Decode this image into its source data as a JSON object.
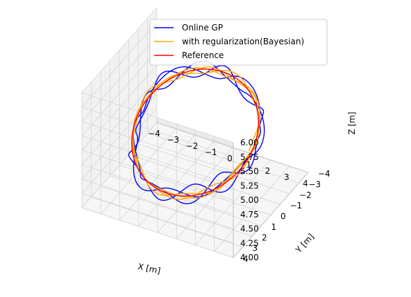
{
  "chart_data": {
    "type": "line",
    "projection": "3d",
    "grid": true,
    "legend_position": "top-right",
    "xlabel": "X [m]",
    "ylabel": "Y [m]",
    "zlabel": "Z [m]",
    "xlim": [
      -4,
      4
    ],
    "ylim": [
      -4,
      4
    ],
    "zlim": [
      4.0,
      6.0
    ],
    "x_ticks": [
      "−4",
      "−3",
      "−2",
      "−1",
      "0",
      "1",
      "2",
      "3",
      "4"
    ],
    "y_ticks": [
      "−4",
      "−3",
      "−2",
      "−1",
      "0",
      "1",
      "2",
      "3",
      "4"
    ],
    "z_ticks": [
      "4.00",
      "4.25",
      "4.50",
      "4.75",
      "5.00",
      "5.25",
      "5.50",
      "5.75",
      "6.00"
    ],
    "series": [
      {
        "name": "Online GP",
        "color": "#0000ff",
        "loops": 3,
        "radius": 3.0,
        "z_center": 5.0,
        "z_amplitude": 0.5,
        "noise": 0.35
      },
      {
        "name": "with regularization(Bayesian)",
        "color": "#ffa500",
        "loops": 3,
        "radius": 3.0,
        "z_center": 5.0,
        "z_amplitude": 0.5,
        "noise": 0.15
      },
      {
        "name": "Reference",
        "color": "#ff0000",
        "loops": 1,
        "radius": 3.0,
        "z_center": 5.0,
        "z_amplitude": 0.5,
        "noise": 0
      }
    ]
  }
}
